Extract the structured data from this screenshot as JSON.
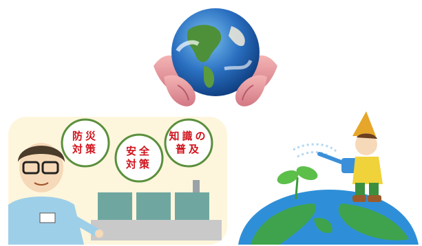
{
  "illustrations": {
    "earth_in_hands": {
      "icon": "earth-in-hands-icon"
    },
    "safety_panel": {
      "circles": [
        {
          "line1": "防災",
          "line2": "対策"
        },
        {
          "line1": "安全",
          "line2": "対策"
        },
        {
          "line1": "知識の",
          "line2": "普及"
        }
      ],
      "colors": {
        "background": "#fdf6dc",
        "circle_border": "#5a8f3c",
        "text": "#d0121b"
      }
    },
    "planting": {
      "icon": "child-watering-sprout-icon"
    }
  }
}
